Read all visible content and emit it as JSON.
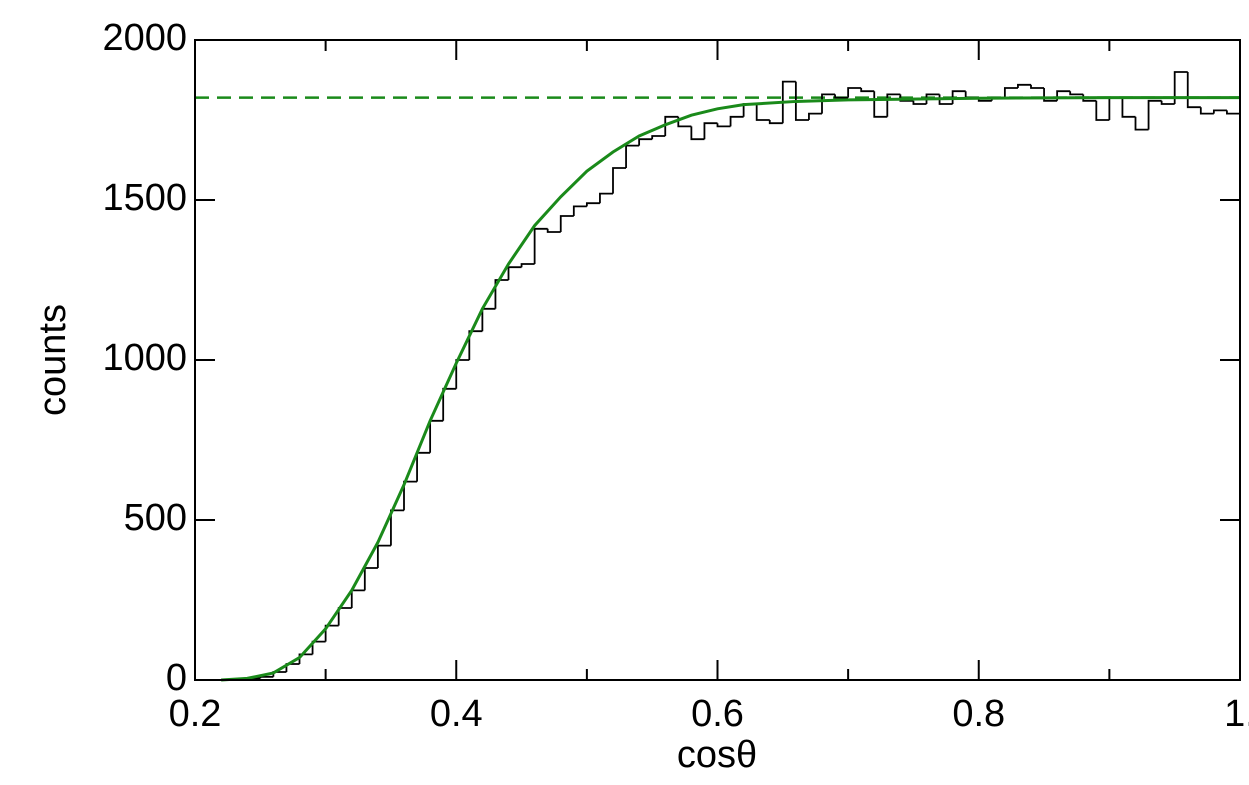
{
  "chart_data": {
    "type": "histogram",
    "x_label": "cosθ",
    "y_label": "counts",
    "xlim": [
      0.2,
      1.0
    ],
    "ylim": [
      0,
      2000
    ],
    "xticks": [
      0.2,
      0.4,
      0.6,
      0.8,
      {
        "value": 1.0,
        "label": "1."
      }
    ],
    "xminor": [
      0.3,
      0.5,
      0.7,
      0.9
    ],
    "yticks": [
      0,
      500,
      1000,
      1500,
      2000
    ],
    "color": "#000000",
    "bins": [
      0.22,
      0.23,
      0.24,
      0.25,
      0.26,
      0.27,
      0.28,
      0.29,
      0.3,
      0.31,
      0.32,
      0.33,
      0.34,
      0.35,
      0.36,
      0.37,
      0.38,
      0.39,
      0.4,
      0.41,
      0.42,
      0.43,
      0.44,
      0.45,
      0.46,
      0.47,
      0.48,
      0.49,
      0.5,
      0.51,
      0.52,
      0.53,
      0.54,
      0.55,
      0.56,
      0.57,
      0.58,
      0.59,
      0.6,
      0.61,
      0.62,
      0.63,
      0.64,
      0.65,
      0.66,
      0.67,
      0.68,
      0.69,
      0.7,
      0.71,
      0.72,
      0.73,
      0.74,
      0.75,
      0.76,
      0.77,
      0.78,
      0.79,
      0.8,
      0.81,
      0.82,
      0.83,
      0.84,
      0.85,
      0.86,
      0.87,
      0.88,
      0.89,
      0.9,
      0.91,
      0.92,
      0.93,
      0.94,
      0.95,
      0.96,
      0.97,
      0.98,
      0.99,
      1.0
    ],
    "values": [
      0,
      2,
      5,
      10,
      25,
      50,
      80,
      120,
      170,
      225,
      280,
      350,
      420,
      530,
      620,
      710,
      810,
      910,
      1000,
      1090,
      1160,
      1250,
      1290,
      1300,
      1410,
      1400,
      1450,
      1480,
      1490,
      1520,
      1600,
      1670,
      1690,
      1700,
      1760,
      1730,
      1690,
      1740,
      1730,
      1760,
      1800,
      1750,
      1740,
      1870,
      1750,
      1770,
      1830,
      1820,
      1850,
      1840,
      1760,
      1830,
      1810,
      1800,
      1830,
      1800,
      1840,
      1820,
      1810,
      1820,
      1850,
      1860,
      1850,
      1810,
      1840,
      1830,
      1810,
      1750,
      1820,
      1760,
      1720,
      1810,
      1800,
      1900,
      1790,
      1770,
      1780,
      1770
    ],
    "lines": [
      {
        "color": "#1a8a1a",
        "x": [
          0.22,
          0.24,
          0.26,
          0.28,
          0.3,
          0.32,
          0.34,
          0.36,
          0.38,
          0.4,
          0.42,
          0.44,
          0.46,
          0.48,
          0.5,
          0.52,
          0.54,
          0.56,
          0.58,
          0.6,
          0.62,
          0.66,
          0.7,
          0.8,
          0.9,
          1.0
        ],
        "values": [
          0,
          5,
          22,
          70,
          160,
          280,
          430,
          610,
          810,
          990,
          1160,
          1300,
          1420,
          1510,
          1590,
          1650,
          1700,
          1735,
          1765,
          1785,
          1798,
          1808,
          1813,
          1818,
          1820,
          1820
        ]
      }
    ],
    "hline": {
      "value": 1820,
      "color": "#1a8a1a",
      "dashed": true
    }
  }
}
